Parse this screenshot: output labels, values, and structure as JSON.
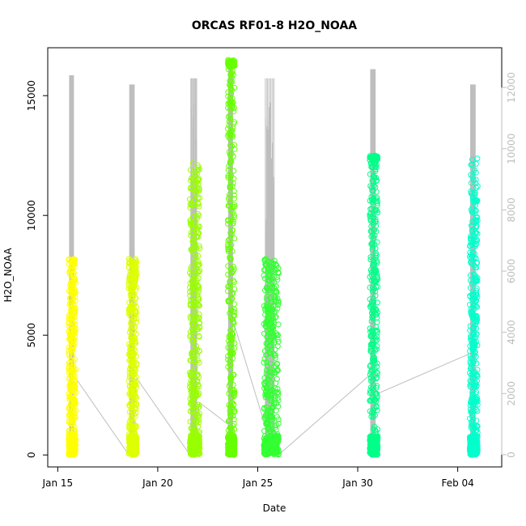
{
  "chart_data": {
    "type": "scatter",
    "title": "ORCAS RF01-8 H2O_NOAA",
    "xlabel": "Date",
    "ylabel": "H2O_NOAA",
    "x_ticks": [
      "Jan 15",
      "Jan 20",
      "Jan 25",
      "Jan 30",
      "Feb 04"
    ],
    "x_tick_days": [
      15,
      20,
      25,
      30,
      35
    ],
    "xlim_days": [
      14.5,
      37.2
    ],
    "y_ticks": [
      0,
      5000,
      10000,
      15000
    ],
    "ylim": [
      -500,
      17000
    ],
    "y2_ticks": [
      0,
      2000,
      4000,
      6000,
      8000,
      10000,
      12000
    ],
    "y2lim": [
      -400,
      13300
    ],
    "grid": false,
    "legend": "none",
    "colors": {
      "trace": "#bebebe",
      "rf01": "#ffff00",
      "rf02": "#ddff00",
      "rf03": "#99ff00",
      "rf04": "#66ff00",
      "rf05": "#33ff33",
      "rf06": "#00ff88",
      "rf07": "#00ffcc"
    },
    "series": [
      {
        "flight": "rf01",
        "day_start": 15.55,
        "day_end": 15.9,
        "h2o_max": 8200,
        "alt_max": 12400,
        "dense_max": 7400
      },
      {
        "flight": "rf02",
        "day_start": 18.55,
        "day_end": 18.95,
        "h2o_max": 8200,
        "alt_max": 12100,
        "dense_max": 7400
      },
      {
        "flight": "rf03",
        "day_start": 21.6,
        "day_end": 22.1,
        "h2o_max": 12200,
        "alt_max": 12300,
        "dense_max": 10500
      },
      {
        "flight": "rf04",
        "day_start": 23.5,
        "day_end": 23.85,
        "h2o_max": 16500,
        "alt_max": 12800,
        "dense_max": 16200
      },
      {
        "flight": "rf05",
        "day_start": 25.3,
        "day_end": 26.05,
        "h2o_max": 8200,
        "alt_max": 12300,
        "dense_max": 7600
      },
      {
        "flight": "rf06",
        "day_start": 30.6,
        "day_end": 31.0,
        "h2o_max": 12500,
        "alt_max": 12600,
        "dense_max": 12300
      },
      {
        "flight": "rf07",
        "day_start": 35.6,
        "day_end": 36.0,
        "h2o_max": 12500,
        "alt_max": 12100,
        "dense_max": 9800
      }
    ],
    "connector_points": [
      {
        "day": 15.9,
        "y2": 2500
      },
      {
        "day": 18.55,
        "y2": 0
      },
      {
        "day": 18.95,
        "y2": 2500
      },
      {
        "day": 21.6,
        "y2": 0
      },
      {
        "day": 22.1,
        "y2": 1700
      },
      {
        "day": 23.5,
        "y2": 1000
      },
      {
        "day": 23.85,
        "y2": 4200
      },
      {
        "day": 25.3,
        "y2": 1100
      },
      {
        "day": 26.05,
        "y2": 0
      },
      {
        "day": 30.6,
        "y2": 2600
      },
      {
        "day": 31.0,
        "y2": 2000
      },
      {
        "day": 35.6,
        "y2": 3300
      }
    ]
  }
}
